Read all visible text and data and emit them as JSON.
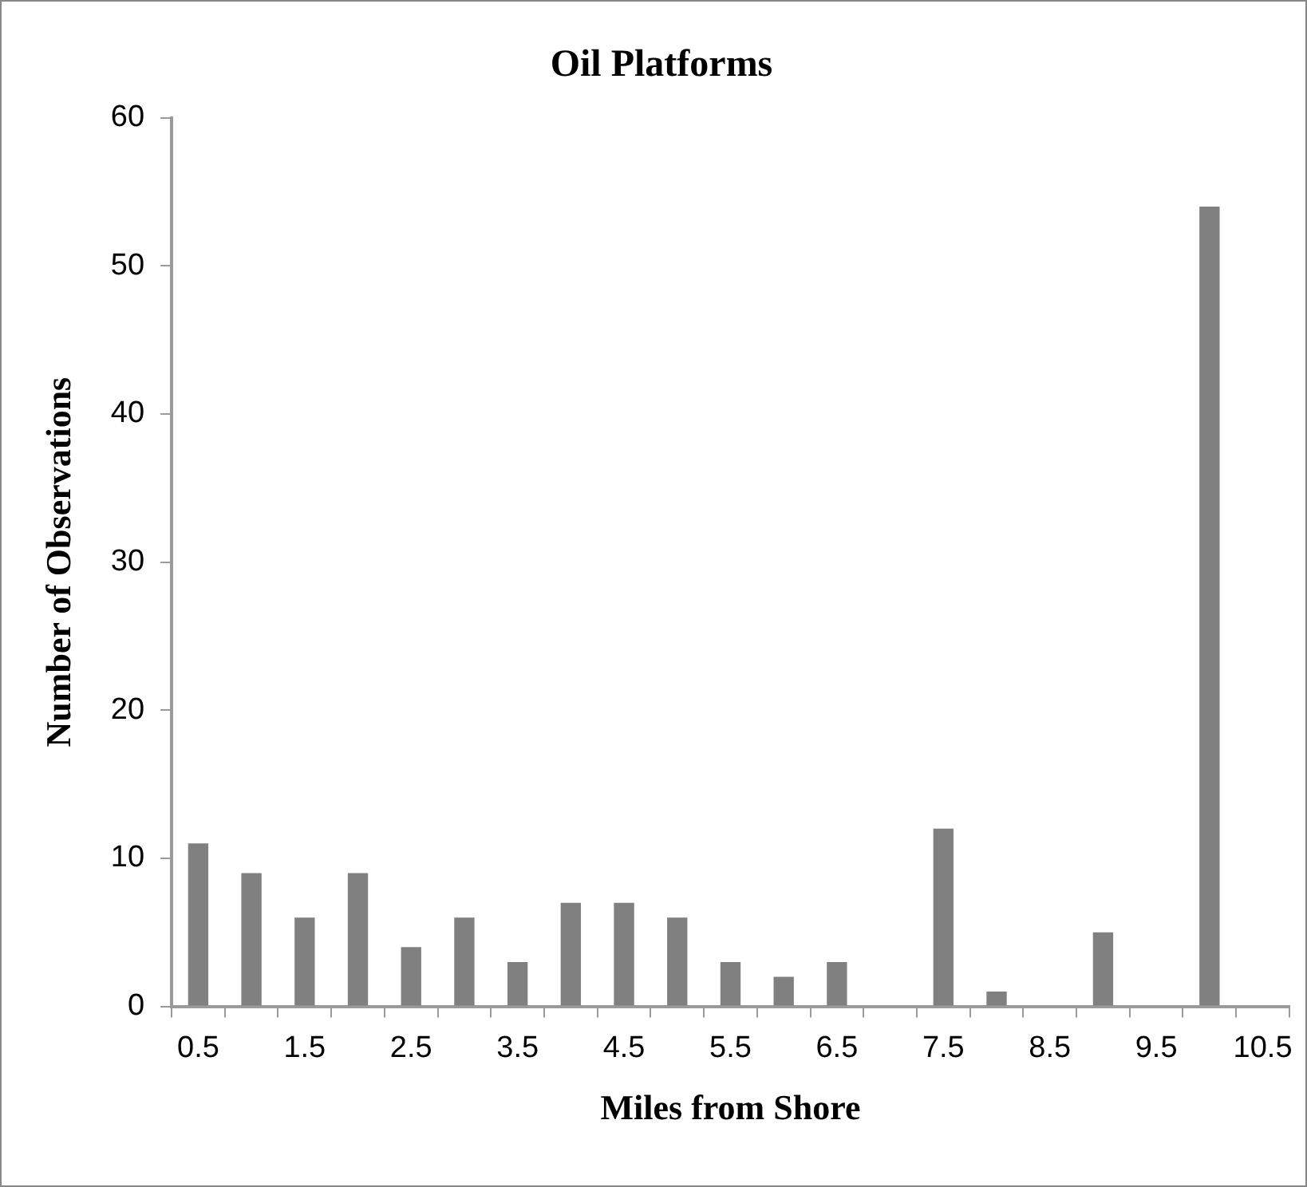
{
  "chart_data": {
    "type": "bar",
    "title": "Oil Platforms",
    "xlabel": "Miles from Shore",
    "ylabel": "Number of Observations",
    "categories": [
      "0.5",
      null,
      "1.5",
      null,
      "2.5",
      null,
      "3.5",
      null,
      "4.5",
      null,
      "5.5",
      null,
      "6.5",
      null,
      "7.5",
      null,
      "8.5",
      null,
      "9.5",
      null,
      "10.5"
    ],
    "values": [
      11,
      9,
      6,
      9,
      4,
      6,
      3,
      7,
      7,
      6,
      3,
      2,
      3,
      0,
      12,
      1,
      0,
      5,
      0,
      54,
      0
    ],
    "color": "#808080",
    "ylim": [
      0,
      60
    ],
    "yticks": [
      0,
      10,
      20,
      30,
      40,
      50,
      60
    ],
    "grid": false,
    "legend": false
  }
}
